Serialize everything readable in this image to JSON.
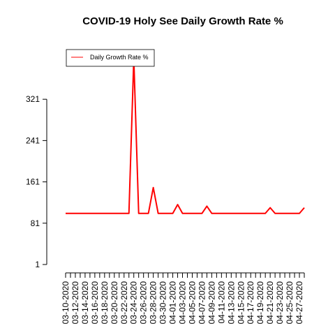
{
  "chart_data": {
    "type": "line",
    "title": "COVID-19 Holy See Daily Growth Rate %",
    "xlabel": "",
    "ylabel": "",
    "ylim": [
      1,
      401
    ],
    "yticks": [
      1,
      81,
      161,
      241,
      321
    ],
    "x_tick_labels": [
      "03-10-2020",
      "03-12-2020",
      "03-14-2020",
      "03-16-2020",
      "03-18-2020",
      "03-20-2020",
      "03-22-2020",
      "03-24-2020",
      "03-26-2020",
      "03-28-2020",
      "03-30-2020",
      "04-01-2020",
      "04-03-2020",
      "04-05-2020",
      "04-07-2020",
      "04-09-2020",
      "04-11-2020",
      "04-13-2020",
      "04-15-2020",
      "04-17-2020",
      "04-19-2020",
      "04-21-2020",
      "04-23-2020",
      "04-25-2020",
      "04-27-2020"
    ],
    "legend": {
      "position": "top-left"
    },
    "grid": false,
    "series": [
      {
        "name": "Daily Growth Rate %",
        "color": "#ff0000",
        "x": [
          "03-10-2020",
          "03-11-2020",
          "03-12-2020",
          "03-13-2020",
          "03-14-2020",
          "03-15-2020",
          "03-16-2020",
          "03-17-2020",
          "03-18-2020",
          "03-19-2020",
          "03-20-2020",
          "03-21-2020",
          "03-22-2020",
          "03-23-2020",
          "03-24-2020",
          "03-25-2020",
          "03-26-2020",
          "03-27-2020",
          "03-28-2020",
          "03-29-2020",
          "03-30-2020",
          "03-31-2020",
          "04-01-2020",
          "04-02-2020",
          "04-03-2020",
          "04-04-2020",
          "04-05-2020",
          "04-06-2020",
          "04-07-2020",
          "04-08-2020",
          "04-09-2020",
          "04-10-2020",
          "04-11-2020",
          "04-12-2020",
          "04-13-2020",
          "04-14-2020",
          "04-15-2020",
          "04-16-2020",
          "04-17-2020",
          "04-18-2020",
          "04-19-2020",
          "04-20-2020",
          "04-21-2020",
          "04-22-2020",
          "04-23-2020",
          "04-24-2020",
          "04-25-2020",
          "04-26-2020",
          "04-27-2020",
          "04-28-2020"
        ],
        "values": [
          100,
          100,
          100,
          100,
          100,
          100,
          100,
          100,
          100,
          100,
          100,
          100,
          100,
          100,
          400,
          100,
          100,
          100,
          150,
          100,
          100,
          100,
          100,
          117,
          100,
          100,
          100,
          100,
          100,
          114,
          100,
          100,
          100,
          100,
          100,
          100,
          100,
          100,
          100,
          100,
          100,
          100,
          111,
          100,
          100,
          100,
          100,
          100,
          100,
          111
        ]
      }
    ]
  }
}
